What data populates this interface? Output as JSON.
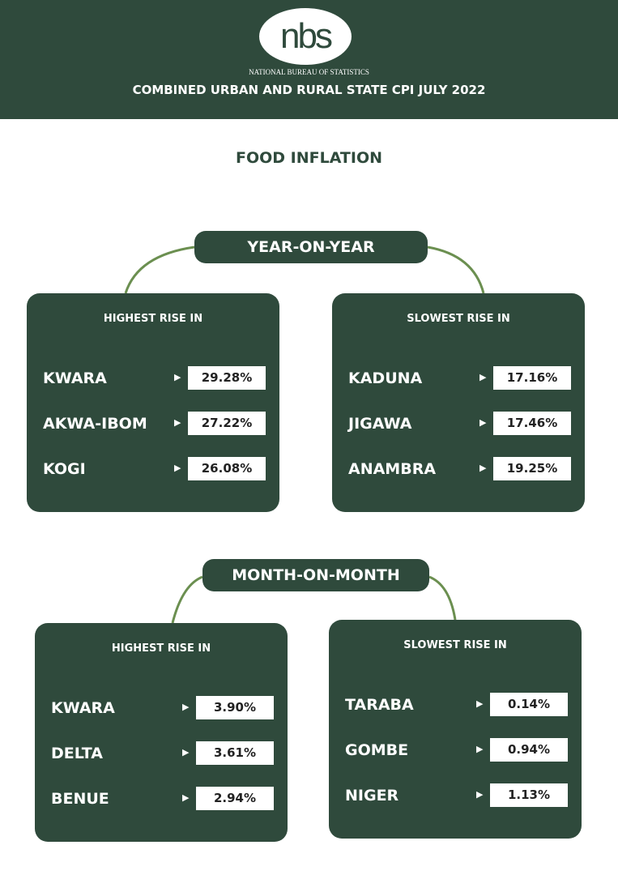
{
  "header": {
    "logo": "nbs",
    "org": "NATIONAL BUREAU OF STATISTICS",
    "title": "COMBINED URBAN AND RURAL STATE CPI JULY 2022"
  },
  "section_title": "FOOD INFLATION",
  "colors": {
    "dark_green": "#2f4a3c",
    "arc_green": "#6b8f50"
  },
  "yoy": {
    "label": "YEAR-ON-YEAR",
    "highest": {
      "title": "HIGHEST RISE IN",
      "rows": [
        {
          "state": "KWARA",
          "value": "29.28%"
        },
        {
          "state": "AKWA-IBOM",
          "value": "27.22%"
        },
        {
          "state": "KOGI",
          "value": "26.08%"
        }
      ]
    },
    "slowest": {
      "title": "SLOWEST RISE IN",
      "rows": [
        {
          "state": "KADUNA",
          "value": "17.16%"
        },
        {
          "state": "JIGAWA",
          "value": "17.46%"
        },
        {
          "state": "ANAMBRA",
          "value": "19.25%"
        }
      ]
    }
  },
  "mom": {
    "label": "MONTH-ON-MONTH",
    "highest": {
      "title": "HIGHEST RISE IN",
      "rows": [
        {
          "state": "KWARA",
          "value": "3.90%"
        },
        {
          "state": "DELTA",
          "value": "3.61%"
        },
        {
          "state": "BENUE",
          "value": "2.94%"
        }
      ]
    },
    "slowest": {
      "title": "SLOWEST RISE IN",
      "rows": [
        {
          "state": "TARABA",
          "value": "0.14%"
        },
        {
          "state": "GOMBE",
          "value": "0.94%"
        },
        {
          "state": "NIGER",
          "value": "1.13%"
        }
      ]
    }
  },
  "arrow_icon": "▶"
}
